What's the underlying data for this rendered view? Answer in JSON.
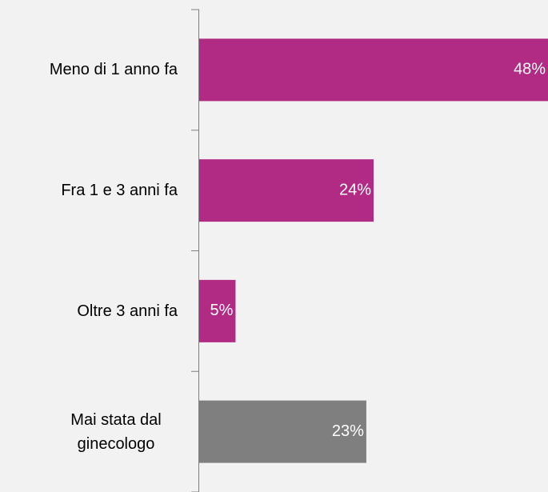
{
  "chart_data": {
    "type": "bar",
    "orientation": "horizontal",
    "categories": [
      "Meno di 1 anno fa",
      "Fra 1 e 3 anni fa",
      "Oltre 3 anni fa",
      "Mai stata dal ginecologo"
    ],
    "values": [
      48,
      24,
      5,
      23
    ],
    "value_labels": [
      "48%",
      "24%",
      "5%",
      "23%"
    ],
    "colors": [
      "#b12a84",
      "#b12a84",
      "#b12a84",
      "#7f7f7f"
    ]
  }
}
